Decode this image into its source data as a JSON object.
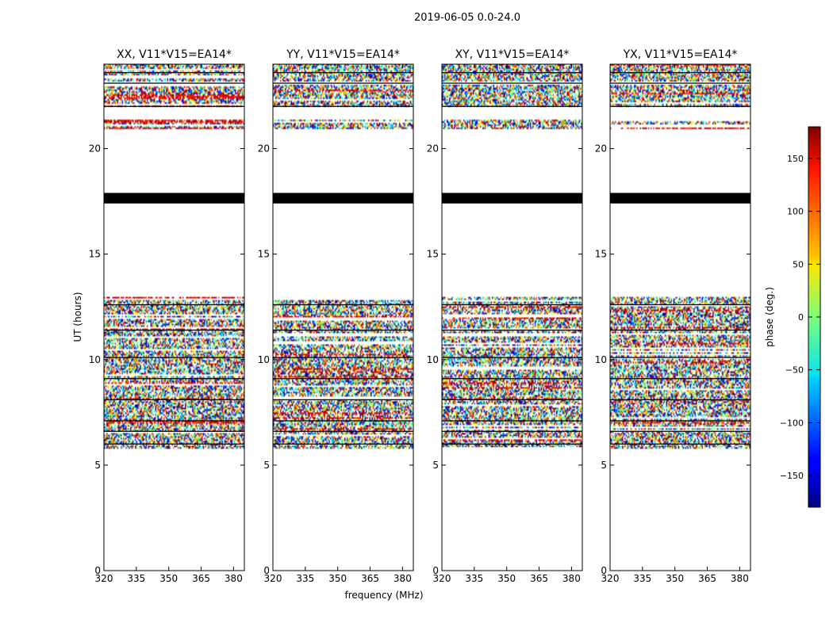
{
  "suptitle": "2019-06-05 0.0-24.0",
  "chart_data": {
    "type": "heatmap",
    "title": "2019-06-05 0.0-24.0",
    "xlabel": "frequency (MHz)",
    "ylabel": "UT (hours)",
    "xlim": [
      320,
      385
    ],
    "ylim": [
      0,
      24
    ],
    "xticks": [
      320,
      335,
      350,
      365,
      380
    ],
    "yticks": [
      0,
      5,
      10,
      15,
      20
    ],
    "panels": [
      {
        "title": "XX, V11*V15=EA14*",
        "pol": "XX"
      },
      {
        "title": "YY, V11*V15=EA14*",
        "pol": "YY"
      },
      {
        "title": "XY, V11*V15=EA14*",
        "pol": "XY"
      },
      {
        "title": "YX, V11*V15=EA14*",
        "pol": "YX"
      }
    ],
    "data_bands_hours": [
      [
        5.8,
        13.0
      ],
      [
        20.9,
        21.4
      ],
      [
        22.0,
        23.0
      ],
      [
        23.2,
        24.0
      ]
    ],
    "flagged_bands_hours": [
      [
        17.4,
        17.9
      ]
    ],
    "colorbar": {
      "label": "phase (deg.)",
      "range": [
        -180,
        180
      ],
      "ticks": [
        -150,
        -100,
        -50,
        0,
        50,
        100,
        150
      ],
      "colormap": "jet"
    }
  },
  "colorbar_ticklabels": [
    "150",
    "100",
    "50",
    "0",
    "−50",
    "−100",
    "−150"
  ]
}
